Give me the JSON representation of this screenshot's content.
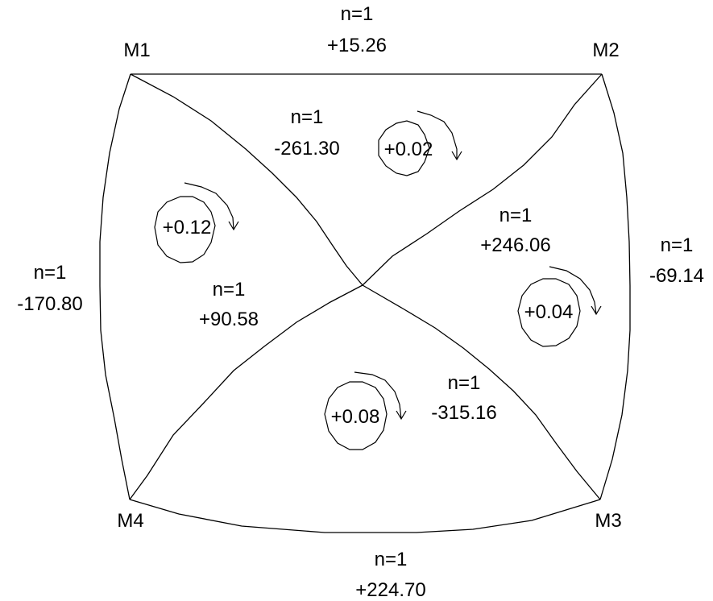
{
  "colors": {
    "line": "#000000",
    "background": "#ffffff"
  },
  "nodes": {
    "m1": "M1",
    "m2": "M2",
    "m3": "M3",
    "m4": "M4"
  },
  "branches": {
    "top": {
      "n": "n=1",
      "value": "+15.26"
    },
    "left": {
      "n": "n=1",
      "value": "-170.80"
    },
    "right": {
      "n": "n=1",
      "value": "-69.14"
    },
    "bottom": {
      "n": "n=1",
      "value": "+224.70"
    },
    "m1_center": {
      "n": "n=1",
      "value": "-261.30"
    },
    "m2_center": {
      "n": "n=1",
      "value": "+246.06"
    },
    "m4_center": {
      "n": "n=1",
      "value": "+90.58"
    },
    "m3_center": {
      "n": "n=1",
      "value": "-315.16"
    }
  },
  "loops": {
    "top": {
      "closure": "+0.02",
      "icon": "clockwise-arrow-icon"
    },
    "left": {
      "closure": "+0.12",
      "icon": "clockwise-arrow-icon"
    },
    "right": {
      "closure": "+0.04",
      "icon": "clockwise-arrow-icon"
    },
    "bottom": {
      "closure": "+0.08",
      "icon": "clockwise-arrow-icon"
    }
  }
}
